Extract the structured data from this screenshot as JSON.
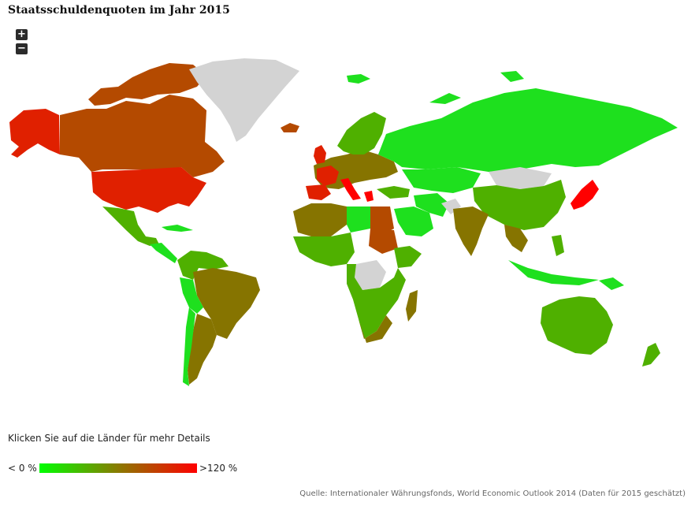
{
  "title": "Staatsschuldenquoten im Jahr 2015",
  "controls": {
    "zoom_in": "+",
    "zoom_out": "−"
  },
  "hint": "Klicken Sie auf die Länder für mehr Details",
  "legend": {
    "min_label": "< 0 %",
    "max_label": ">120 %",
    "min_color": "#00ff00",
    "mid_color": "#8a7a00",
    "max_color": "#ff0000"
  },
  "source": "Quelle: Internationaler Währungsfonds, World Economic Outlook 2014 (Daten für 2015 geschätzt)",
  "colors": {
    "no_data": "#d3d3d3",
    "low": "#1ee01e",
    "low_mid": "#4fb000",
    "mid": "#867400",
    "mid_high": "#b44a00",
    "high": "#e02000",
    "very_high": "#ff0000"
  }
}
